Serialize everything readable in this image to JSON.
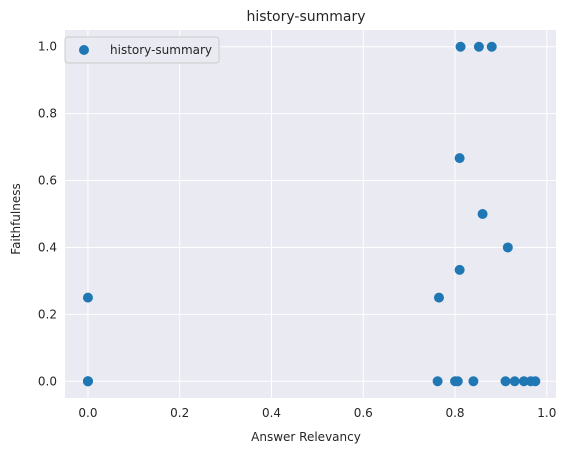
{
  "chart_data": {
    "type": "scatter",
    "title": "history-summary",
    "xlabel": "Answer Relevancy",
    "ylabel": "Faithfulness",
    "xlim": [
      -0.05,
      1.02
    ],
    "ylim": [
      -0.05,
      1.05
    ],
    "xticks": [
      0.0,
      0.2,
      0.4,
      0.6,
      0.8,
      1.0
    ],
    "xtick_labels": [
      "0.0",
      "0.2",
      "0.4",
      "0.6",
      "0.8",
      "1.0"
    ],
    "yticks": [
      0.0,
      0.2,
      0.4,
      0.6,
      0.8,
      1.0
    ],
    "ytick_labels": [
      "0.0",
      "0.2",
      "0.4",
      "0.6",
      "0.8",
      "1.0"
    ],
    "grid": true,
    "legend_position": "top-left",
    "colors": {
      "background": "#eaeaf2",
      "grid": "#ffffff",
      "marker": "#1f77b4"
    },
    "series": [
      {
        "name": "history-summary",
        "points": [
          [
            0.0,
            0.25
          ],
          [
            0.0,
            0.0
          ],
          [
            0.0,
            0.0
          ],
          [
            0.0,
            0.0
          ],
          [
            0.812,
            1.0
          ],
          [
            0.852,
            1.0
          ],
          [
            0.88,
            1.0
          ],
          [
            0.81,
            0.667
          ],
          [
            0.86,
            0.5
          ],
          [
            0.915,
            0.4
          ],
          [
            0.81,
            0.333
          ],
          [
            0.765,
            0.25
          ],
          [
            0.762,
            0.0
          ],
          [
            0.8,
            0.0
          ],
          [
            0.806,
            0.0
          ],
          [
            0.84,
            0.0
          ],
          [
            0.91,
            0.0
          ],
          [
            0.93,
            0.0
          ],
          [
            0.95,
            0.0
          ],
          [
            0.965,
            0.0
          ],
          [
            0.975,
            0.0
          ]
        ]
      }
    ]
  }
}
